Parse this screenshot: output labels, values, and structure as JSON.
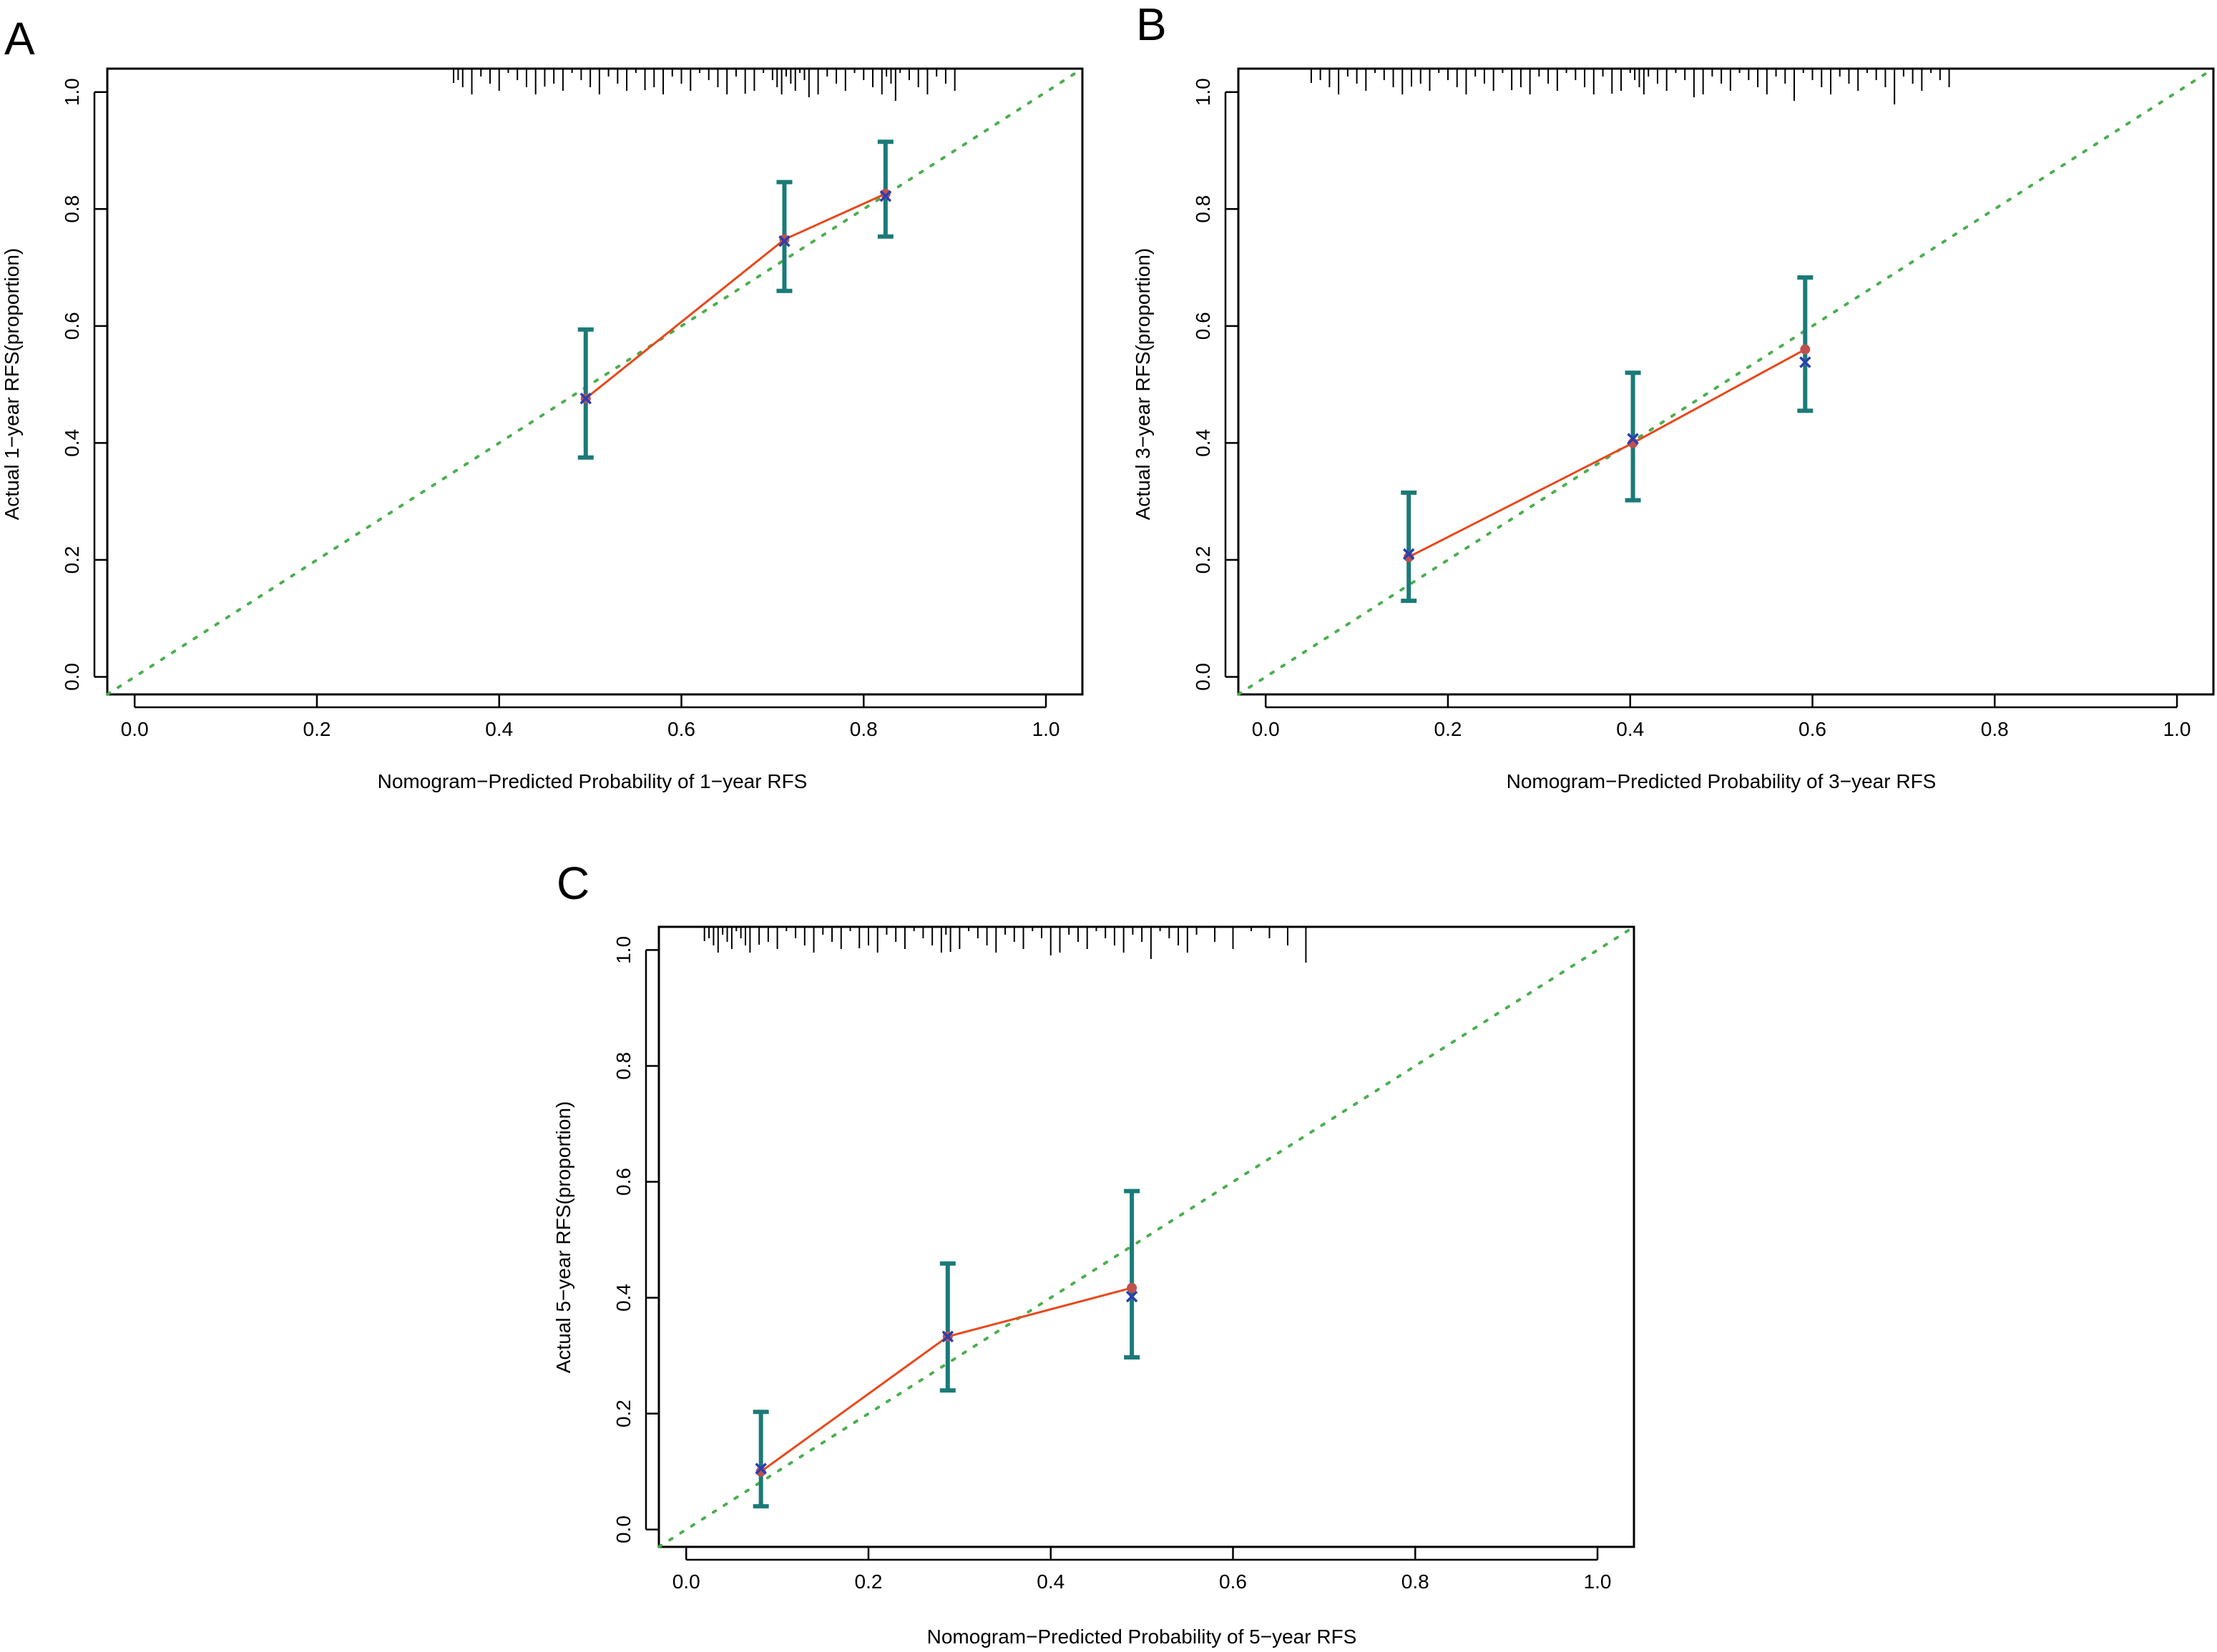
{
  "colors": {
    "ideal_line": "#4caf50",
    "calibration_line": "#e8481c",
    "error_bar": "#1b7a78",
    "x_marker": "#2a3fb0",
    "observed_point": "#c0504d",
    "axis": "#000000"
  },
  "chart_data": [
    {
      "panel_label": "A",
      "type": "line",
      "title": "",
      "xlabel": "Nomogram−Predicted Probability of 1−year RFS",
      "ylabel": "Actual 1−year RFS(proportion)",
      "xlim": [
        -0.03,
        1.04
      ],
      "ylim": [
        -0.03,
        1.04
      ],
      "xticks": [
        "0.0",
        "0.2",
        "0.4",
        "0.6",
        "0.8",
        "1.0"
      ],
      "yticks": [
        "0.0",
        "0.2",
        "0.4",
        "0.6",
        "0.8",
        "1.0"
      ],
      "ideal_line": {
        "x": [
          -0.03,
          1.04
        ],
        "y": [
          -0.03,
          1.04
        ]
      },
      "points": [
        {
          "x": 0.495,
          "observed": 0.476,
          "corrected": 0.476,
          "lower": 0.375,
          "upper": 0.594
        },
        {
          "x": 0.713,
          "observed": 0.748,
          "corrected": 0.745,
          "lower": 0.66,
          "upper": 0.846
        },
        {
          "x": 0.824,
          "observed": 0.826,
          "corrected": 0.822,
          "lower": 0.753,
          "upper": 0.915
        }
      ],
      "rug": [
        0.35,
        0.355,
        0.36,
        0.37,
        0.38,
        0.39,
        0.4,
        0.41,
        0.42,
        0.43,
        0.44,
        0.45,
        0.46,
        0.47,
        0.48,
        0.49,
        0.5,
        0.51,
        0.52,
        0.53,
        0.54,
        0.55,
        0.56,
        0.57,
        0.58,
        0.59,
        0.6,
        0.61,
        0.62,
        0.63,
        0.64,
        0.65,
        0.66,
        0.67,
        0.68,
        0.69,
        0.7,
        0.705,
        0.71,
        0.715,
        0.72,
        0.725,
        0.73,
        0.735,
        0.74,
        0.75,
        0.76,
        0.77,
        0.78,
        0.79,
        0.8,
        0.81,
        0.82,
        0.825,
        0.83,
        0.835,
        0.84,
        0.85,
        0.86,
        0.87,
        0.88,
        0.89,
        0.9
      ]
    },
    {
      "panel_label": "B",
      "type": "line",
      "title": "",
      "xlabel": "Nomogram−Predicted Probability of 3−year RFS",
      "ylabel": "Actual 3−year RFS(proportion)",
      "xlim": [
        -0.03,
        1.04
      ],
      "ylim": [
        -0.03,
        1.04
      ],
      "xticks": [
        "0.0",
        "0.2",
        "0.4",
        "0.6",
        "0.8",
        "1.0"
      ],
      "yticks": [
        "0.0",
        "0.2",
        "0.4",
        "0.6",
        "0.8",
        "1.0"
      ],
      "ideal_line": {
        "x": [
          -0.03,
          1.04
        ],
        "y": [
          -0.03,
          1.04
        ]
      },
      "points": [
        {
          "x": 0.157,
          "observed": 0.205,
          "corrected": 0.21,
          "lower": 0.13,
          "upper": 0.315
        },
        {
          "x": 0.403,
          "observed": 0.4,
          "corrected": 0.407,
          "lower": 0.302,
          "upper": 0.52
        },
        {
          "x": 0.592,
          "observed": 0.56,
          "corrected": 0.538,
          "lower": 0.455,
          "upper": 0.683
        }
      ],
      "rug": [
        0.05,
        0.06,
        0.07,
        0.08,
        0.09,
        0.1,
        0.11,
        0.12,
        0.13,
        0.14,
        0.15,
        0.16,
        0.17,
        0.18,
        0.19,
        0.2,
        0.21,
        0.22,
        0.23,
        0.24,
        0.25,
        0.26,
        0.27,
        0.28,
        0.29,
        0.3,
        0.31,
        0.32,
        0.33,
        0.34,
        0.35,
        0.36,
        0.37,
        0.38,
        0.39,
        0.4,
        0.405,
        0.41,
        0.415,
        0.42,
        0.43,
        0.44,
        0.45,
        0.46,
        0.47,
        0.48,
        0.49,
        0.5,
        0.51,
        0.52,
        0.53,
        0.54,
        0.55,
        0.56,
        0.57,
        0.58,
        0.59,
        0.6,
        0.61,
        0.62,
        0.63,
        0.64,
        0.65,
        0.66,
        0.67,
        0.68,
        0.69,
        0.7,
        0.71,
        0.72,
        0.73,
        0.74,
        0.75
      ]
    },
    {
      "panel_label": "C",
      "type": "line",
      "title": "",
      "xlabel": "Nomogram−Predicted Probability of 5−year RFS",
      "ylabel": "Actual 5−year RFS(proportion)",
      "xlim": [
        -0.03,
        1.04
      ],
      "ylim": [
        -0.03,
        1.04
      ],
      "xticks": [
        "0.0",
        "0.2",
        "0.4",
        "0.6",
        "0.8",
        "1.0"
      ],
      "yticks": [
        "0.0",
        "0.2",
        "0.4",
        "0.6",
        "0.8",
        "1.0"
      ],
      "ideal_line": {
        "x": [
          -0.03,
          1.04
        ],
        "y": [
          -0.03,
          1.04
        ]
      },
      "points": [
        {
          "x": 0.082,
          "observed": 0.1,
          "corrected": 0.105,
          "lower": 0.04,
          "upper": 0.203
        },
        {
          "x": 0.287,
          "observed": 0.333,
          "corrected": 0.333,
          "lower": 0.24,
          "upper": 0.459
        },
        {
          "x": 0.489,
          "observed": 0.417,
          "corrected": 0.402,
          "lower": 0.297,
          "upper": 0.584
        }
      ],
      "rug": [
        0.02,
        0.025,
        0.03,
        0.035,
        0.04,
        0.045,
        0.05,
        0.055,
        0.06,
        0.065,
        0.07,
        0.08,
        0.09,
        0.1,
        0.11,
        0.12,
        0.13,
        0.14,
        0.15,
        0.16,
        0.17,
        0.18,
        0.19,
        0.2,
        0.21,
        0.22,
        0.23,
        0.24,
        0.25,
        0.26,
        0.27,
        0.28,
        0.285,
        0.29,
        0.3,
        0.31,
        0.32,
        0.33,
        0.34,
        0.35,
        0.36,
        0.37,
        0.38,
        0.39,
        0.4,
        0.41,
        0.42,
        0.43,
        0.44,
        0.45,
        0.46,
        0.47,
        0.48,
        0.49,
        0.5,
        0.51,
        0.52,
        0.53,
        0.54,
        0.55,
        0.56,
        0.58,
        0.6,
        0.62,
        0.64,
        0.66,
        0.68
      ]
    }
  ]
}
